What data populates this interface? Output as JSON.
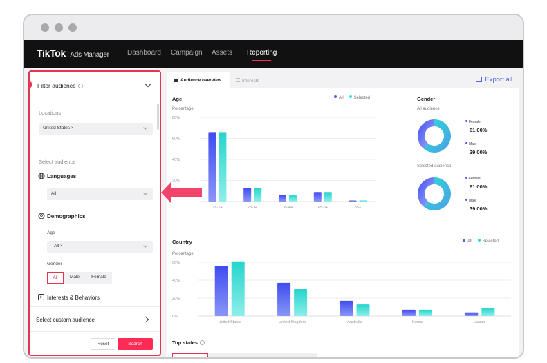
{
  "nav": {
    "brand": "TikTok",
    "brand_sub": ": Ads Manager",
    "items": [
      {
        "label": "Dashboard",
        "active": false
      },
      {
        "label": "Campaign",
        "active": false
      },
      {
        "label": "Assets",
        "active": false
      },
      {
        "label": "Reporting",
        "active": true
      }
    ]
  },
  "sidebar": {
    "title": "Filter audience",
    "locations_label": "Locations",
    "location_tag": "United States",
    "select_audience_label": "Select audience",
    "languages_label": "Languages",
    "languages_value": "All",
    "demographics_label": "Demographics",
    "age_label": "Age",
    "age_value": "All",
    "gender_label": "Gender",
    "gender_options": [
      "All",
      "Male",
      "Female"
    ],
    "interests_label": "Interests & Behaviors",
    "custom_audience_label": "Select custom audience",
    "reset_label": "Reset",
    "search_label": "Search"
  },
  "tabs": [
    {
      "label": "Audience overview",
      "active": true
    },
    {
      "label": "Interests",
      "active": false
    }
  ],
  "export_label": "Export all",
  "age_card": {
    "title": "Age",
    "subtitle": "Percentage",
    "legend": [
      "All",
      "Selected"
    ]
  },
  "gender_card": {
    "title": "Gender",
    "all_label": "All audience",
    "selected_label": "Selected audience",
    "female_label": "Female",
    "male_label": "Male",
    "all_female": "61.00%",
    "all_male": "39.00%",
    "sel_female": "61.00%",
    "sel_male": "39.00%"
  },
  "country_card": {
    "title": "Country",
    "subtitle": "Percentage",
    "legend": [
      "All",
      "Selected"
    ]
  },
  "top_states_title": "Top states",
  "colors": {
    "accent": "#fe2c55",
    "all": "#4f5be8",
    "selected": "#2fd9d3"
  },
  "chart_data": [
    {
      "type": "bar",
      "title": "Age",
      "ylabel": "Percentage",
      "categories": [
        "18-24",
        "25-34",
        "35-44",
        "45-54",
        "55+"
      ],
      "series": [
        {
          "name": "All",
          "values": [
            66,
            13,
            6,
            9,
            1
          ]
        },
        {
          "name": "Selected",
          "values": [
            66,
            13,
            6,
            9,
            1
          ]
        }
      ],
      "yticks": [
        "80%",
        "60%",
        "40%",
        "20%"
      ],
      "ylim": [
        0,
        80
      ]
    },
    {
      "type": "bar",
      "title": "Country",
      "ylabel": "Percentage",
      "categories": [
        "United States",
        "United Kingdom",
        "Australia",
        "Korea",
        "Japan"
      ],
      "series": [
        {
          "name": "All",
          "values": [
            56,
            37,
            17,
            7,
            4
          ]
        },
        {
          "name": "Selected",
          "values": [
            61,
            30,
            13,
            7,
            9
          ]
        }
      ],
      "yticks": [
        "60%",
        "40%",
        "20%",
        "0%"
      ],
      "ylim": [
        0,
        60
      ]
    },
    {
      "type": "pie",
      "title": "All audience",
      "categories": [
        "Female",
        "Male"
      ],
      "values": [
        61,
        39
      ]
    },
    {
      "type": "pie",
      "title": "Selected audience",
      "categories": [
        "Female",
        "Male"
      ],
      "values": [
        61,
        39
      ]
    }
  ]
}
